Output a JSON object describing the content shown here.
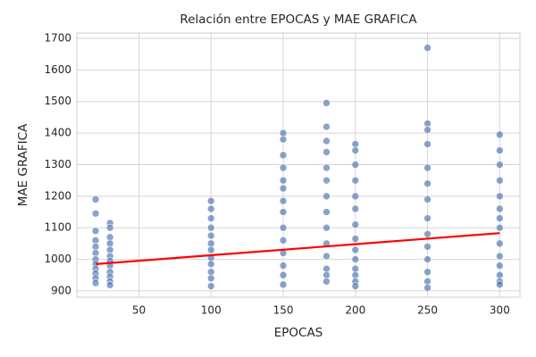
{
  "chart_data": {
    "type": "scatter",
    "title": "Relación entre EPOCAS y MAE GRAFICA",
    "x_label": "EPOCAS",
    "y_label": "MAE GRAFICA",
    "xlim": [
      7,
      314
    ],
    "ylim": [
      880,
      1717
    ],
    "xticks": [
      50,
      100,
      150,
      200,
      250,
      300
    ],
    "yticks": [
      900,
      1000,
      1100,
      1200,
      1300,
      1400,
      1500,
      1600,
      1700
    ],
    "grid": true,
    "series": [
      {
        "kind": "scatter",
        "color": "#4c72b0",
        "x": [
          20,
          20,
          20,
          20,
          20,
          20,
          20,
          20,
          20,
          20,
          20,
          20,
          30,
          30,
          30,
          30,
          30,
          30,
          30,
          30,
          30,
          30,
          30,
          30,
          100,
          100,
          100,
          100,
          100,
          100,
          100,
          100,
          100,
          100,
          100,
          100,
          150,
          150,
          150,
          150,
          150,
          150,
          150,
          150,
          150,
          150,
          150,
          150,
          150,
          150,
          180,
          180,
          180,
          180,
          180,
          180,
          180,
          180,
          180,
          180,
          180,
          180,
          180,
          180,
          200,
          200,
          200,
          200,
          200,
          200,
          200,
          200,
          200,
          200,
          200,
          200,
          200,
          200,
          250,
          250,
          250,
          250,
          250,
          250,
          250,
          250,
          250,
          250,
          250,
          250,
          250,
          250,
          300,
          300,
          300,
          300,
          300,
          300,
          300,
          300,
          300,
          300,
          300,
          300,
          300,
          300
        ],
        "values": [
          1190,
          1145,
          1090,
          1060,
          1040,
          1020,
          1000,
          985,
          970,
          955,
          940,
          925,
          1115,
          1100,
          1070,
          1050,
          1030,
          1010,
          995,
          980,
          960,
          945,
          930,
          918,
          1185,
          1160,
          1130,
          1100,
          1075,
          1050,
          1030,
          1005,
          985,
          960,
          940,
          915,
          1400,
          1380,
          1330,
          1290,
          1250,
          1225,
          1185,
          1150,
          1100,
          1060,
          1020,
          980,
          950,
          920,
          1495,
          1420,
          1375,
          1340,
          1290,
          1250,
          1200,
          1150,
          1100,
          1050,
          1010,
          970,
          950,
          930,
          1365,
          1345,
          1300,
          1250,
          1200,
          1160,
          1110,
          1065,
          1030,
          1000,
          970,
          950,
          930,
          915,
          1670,
          1430,
          1410,
          1365,
          1290,
          1240,
          1190,
          1130,
          1080,
          1040,
          1000,
          960,
          930,
          910,
          1395,
          1345,
          1300,
          1250,
          1200,
          1160,
          1130,
          1100,
          1050,
          1010,
          980,
          950,
          930,
          920
        ]
      },
      {
        "kind": "line",
        "color": "#ff0000",
        "x": [
          20,
          300
        ],
        "values": [
          985,
          1083
        ]
      }
    ]
  }
}
